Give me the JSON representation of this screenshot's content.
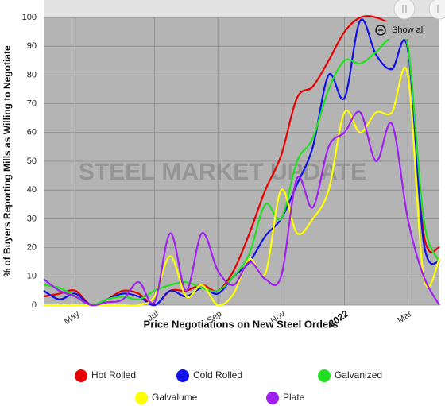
{
  "chart_data": {
    "type": "line",
    "x_label": "Price Negotiations on New Steel Orders",
    "y_label": "% of Buyers Reporting Mills as Willing to Negotiate",
    "watermark": "STEEL MARKET UPDATE",
    "button": "Show all",
    "categories": [
      null,
      null,
      "May",
      null,
      null,
      null,
      null,
      "Jul",
      null,
      null,
      null,
      "Sep",
      null,
      null,
      null,
      "Nov",
      null,
      null,
      null,
      "2022",
      null,
      null,
      null,
      "Mar",
      null,
      null
    ],
    "bold_categories": [
      "2022"
    ],
    "ylim": [
      0,
      100
    ],
    "yticks": [
      0,
      10,
      20,
      30,
      40,
      50,
      60,
      70,
      80,
      90,
      100
    ],
    "grid": true,
    "legend": "bottom",
    "series": [
      {
        "name": "Hot Rolled",
        "color": "#e80000",
        "values": [
          3,
          4,
          5,
          0,
          2,
          5,
          4,
          0,
          5,
          5,
          7,
          5,
          12,
          25,
          40,
          52,
          72,
          76,
          85,
          95,
          100,
          100,
          97,
          90,
          25,
          20
        ]
      },
      {
        "name": "Cold Rolled",
        "color": "#1010e8",
        "values": [
          5,
          2,
          4,
          0,
          2,
          4,
          3,
          0,
          5,
          3,
          6,
          4,
          10,
          15,
          24,
          30,
          42,
          55,
          80,
          72,
          99,
          87,
          82,
          89,
          22,
          15
        ]
      },
      {
        "name": "Galvanized",
        "color": "#20e020",
        "values": [
          7,
          6,
          3,
          0,
          2,
          3,
          2,
          5,
          7,
          8,
          6,
          5,
          10,
          18,
          35,
          30,
          50,
          58,
          75,
          85,
          84,
          88,
          93,
          90,
          30,
          15
        ]
      },
      {
        "name": "Galvalume",
        "color": "#ffff00",
        "values": [
          0,
          0,
          0,
          0,
          0,
          0,
          0,
          3,
          17,
          3,
          7,
          0,
          4,
          16,
          11,
          40,
          25,
          30,
          40,
          67,
          60,
          67,
          67,
          80,
          10,
          16
        ]
      },
      {
        "name": "Plate",
        "color": "#a020f0",
        "values": [
          9,
          5,
          3,
          0,
          1,
          2,
          8,
          1,
          25,
          5,
          25,
          12,
          7,
          15,
          9,
          10,
          44,
          34,
          55,
          60,
          67,
          50,
          63,
          30,
          10,
          0
        ]
      }
    ]
  }
}
